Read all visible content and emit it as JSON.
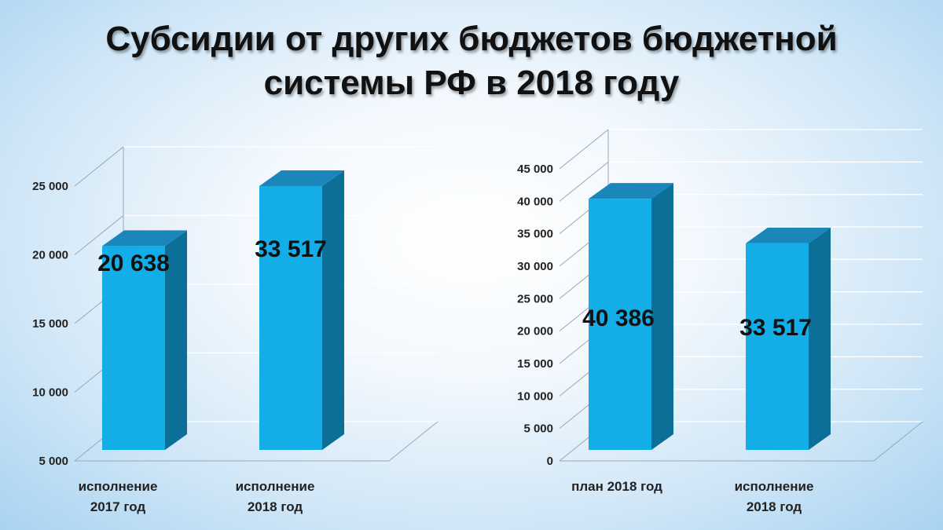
{
  "title": {
    "line1": "Субсидии от других бюджетов бюджетной",
    "line2": "системы РФ в 2018 году"
  },
  "colors": {
    "bar_front": "#13ade8",
    "bar_top": "#1a86ba",
    "bar_side": "#0c6f97",
    "grid": "#ffffff"
  },
  "chart_data": [
    {
      "type": "bar",
      "categories": [
        [
          "исполнение",
          "2017 год"
        ],
        [
          "исполнение",
          "2018 год"
        ]
      ],
      "value_labels": [
        "20 638",
        "33 517"
      ],
      "values": [
        20638,
        33517
      ],
      "yticks": [
        "5 000",
        "10 000",
        "15 000",
        "20 000",
        "25 000"
      ],
      "ylim": [
        5000,
        25000
      ],
      "grid": true
    },
    {
      "type": "bar",
      "categories": [
        [
          "план 2018 год"
        ],
        [
          "исполнение",
          "2018 год"
        ]
      ],
      "value_labels": [
        "40 386",
        "33 517"
      ],
      "values": [
        40386,
        33517
      ],
      "yticks": [
        "0",
        "5 000",
        "10 000",
        "15 000",
        "20 000",
        "25 000",
        "30 000",
        "35 000",
        "40 000",
        "45 000"
      ],
      "ylim": [
        0,
        45000
      ],
      "grid": true
    }
  ]
}
